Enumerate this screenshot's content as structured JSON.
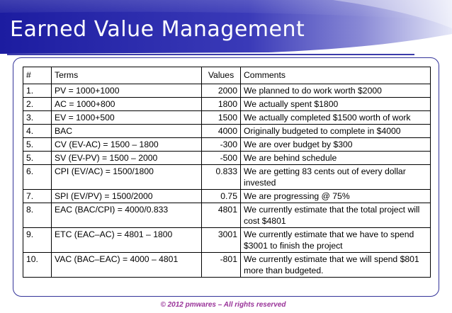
{
  "slide": {
    "title": "Earned Value Management",
    "footer": "© 2012 pmwares – All rights reserved",
    "colors": {
      "header_dark": "#1a1a99",
      "header_light": "#e8eaf8",
      "border": "#333399",
      "footer": "#993399"
    }
  },
  "table": {
    "headers": [
      "#",
      "Terms",
      "Values",
      "Comments"
    ],
    "rows": [
      {
        "n": "1.",
        "term": "PV = 1000+1000",
        "value": "2000",
        "comment": "We planned to do work worth $2000"
      },
      {
        "n": "2.",
        "term": "AC = 1000+800",
        "value": "1800",
        "comment": "We actually spent $1800"
      },
      {
        "n": "3.",
        "term": "EV = 1000+500",
        "value": "1500",
        "comment": "We actually completed $1500 worth of work"
      },
      {
        "n": "4.",
        "term": "BAC",
        "value": "4000",
        "comment": "Originally budgeted to complete in $4000"
      },
      {
        "n": "5.",
        "term": "CV (EV-AC) = 1500 – 1800",
        "value": "-300",
        "comment": "We are over budget by $300"
      },
      {
        "n": "5.",
        "term": "SV (EV-PV) = 1500 – 2000",
        "value": "-500",
        "comment": "We are behind schedule"
      },
      {
        "n": "6.",
        "term": "CPI (EV/AC) = 1500/1800",
        "value": "0.833",
        "comment": "We are getting 83 cents out of every dollar invested"
      },
      {
        "n": "7.",
        "term": "SPI (EV/PV) = 1500/2000",
        "value": "0.75",
        "comment": "We are progressing @ 75%"
      },
      {
        "n": "8.",
        "term": "EAC (BAC/CPI) = 4000/0.833",
        "value": "4801",
        "comment": "We currently estimate that the total project will cost $4801"
      },
      {
        "n": "9.",
        "term": "ETC (EAC–AC) = 4801 – 1800",
        "value": "3001",
        "comment": "We currently estimate that we have to spend $3001 to finish the project"
      },
      {
        "n": "10.",
        "term": "VAC (BAC–EAC) = 4000 – 4801",
        "value": "-801",
        "comment": "We currently estimate that we will spend $801 more than budgeted."
      }
    ]
  }
}
